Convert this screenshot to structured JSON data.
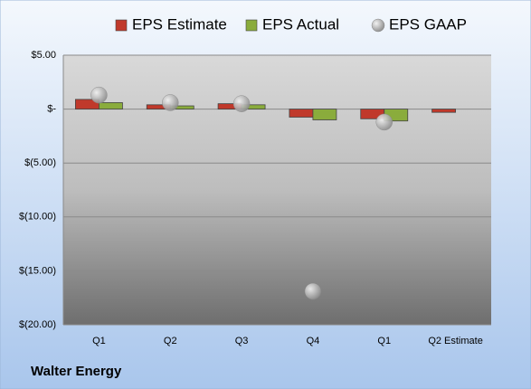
{
  "chart_data": {
    "type": "bar",
    "title": "Walter Energy",
    "categories": [
      "Q1",
      "Q2",
      "Q3",
      "Q4",
      "Q1",
      "Q2 Estimate"
    ],
    "series": [
      {
        "name": "EPS Estimate",
        "color": "#c0392b",
        "values": [
          0.9,
          0.4,
          0.5,
          -0.75,
          -0.9,
          -0.3
        ]
      },
      {
        "name": "EPS Actual",
        "color": "#8aac3c",
        "values": [
          0.6,
          0.3,
          0.4,
          -1.0,
          -1.1,
          null
        ]
      },
      {
        "name": "EPS GAAP",
        "color": "#b0b0b0",
        "marker": "bubble",
        "values": [
          1.3,
          0.6,
          0.5,
          -16.9,
          -1.2,
          null
        ]
      }
    ],
    "ylim": [
      -20,
      5
    ],
    "yticks": [
      {
        "value": 5,
        "label": "$5.00"
      },
      {
        "value": 0,
        "label": "$-"
      },
      {
        "value": -5,
        "label": "$(5.00)"
      },
      {
        "value": -10,
        "label": "$(10.00)"
      },
      {
        "value": -15,
        "label": "$(15.00)"
      },
      {
        "value": -20,
        "label": "$(20.00)"
      }
    ],
    "grid": true,
    "legend": "top"
  }
}
